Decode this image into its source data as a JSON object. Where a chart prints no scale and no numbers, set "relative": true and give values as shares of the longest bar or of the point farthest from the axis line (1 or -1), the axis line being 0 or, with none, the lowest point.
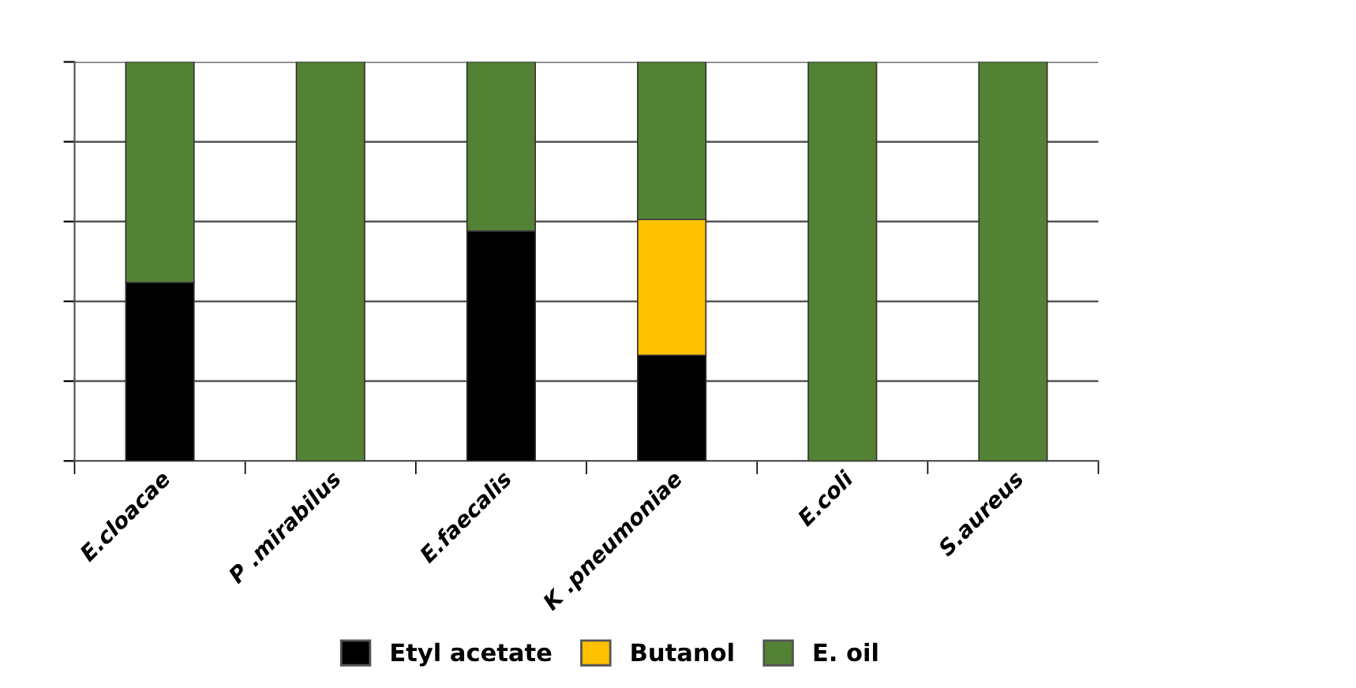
{
  "chart_data": {
    "type": "bar",
    "stacked": true,
    "relative": true,
    "grid": "y",
    "legend": "bottom",
    "categories": [
      "E.cloacae",
      "P .mirabilus",
      "E.faecalis",
      "K .pneumoniae",
      "E.coli",
      "S.aureus"
    ],
    "series": [
      {
        "name": "Etyl acetate",
        "color": "#000000",
        "values": [
          0.447,
          0,
          0.576,
          0.265,
          0,
          0
        ]
      },
      {
        "name": "Butanol",
        "color": "#ffc000",
        "values": [
          0,
          0,
          0,
          0.34,
          0,
          0
        ]
      },
      {
        "name": "E. oil",
        "color": "#548235",
        "values": [
          0.553,
          1,
          0.424,
          0.395,
          1,
          1
        ]
      }
    ]
  }
}
